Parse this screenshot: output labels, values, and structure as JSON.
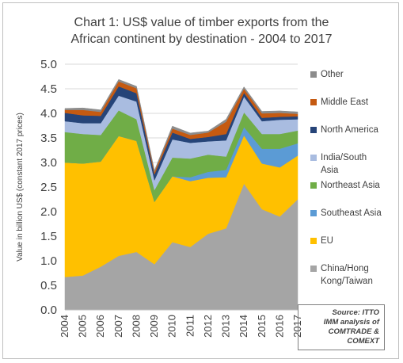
{
  "chart_data": {
    "type": "area",
    "stacked": true,
    "title": "Chart 1: US$ value of timber exports from the African continent by destination - 2004 to 2017",
    "title_lines": [
      "Chart 1: US$ value of timber exports from the",
      "African continent by destination - 2004 to 2017"
    ],
    "ylabel": "Value in billion US$ (constant 2017 prices)",
    "xlabel": "",
    "ylim": [
      0,
      5
    ],
    "yticks": [
      "0.0",
      "0.5",
      "1.0",
      "1.5",
      "2.0",
      "2.5",
      "3.0",
      "3.5",
      "4.0",
      "4.5",
      "5.0"
    ],
    "categories": [
      "2004",
      "2005",
      "2006",
      "2007",
      "2008",
      "2009",
      "2010",
      "2011",
      "2012",
      "2013",
      "2014",
      "2015",
      "2016",
      "2017"
    ],
    "grid": true,
    "legend_position": "right",
    "series": [
      {
        "name": "China/Hong Kong/Taiwan",
        "color": "#a5a5a5",
        "values": [
          0.67,
          0.7,
          0.88,
          1.1,
          1.18,
          0.93,
          1.38,
          1.28,
          1.55,
          1.66,
          2.57,
          2.05,
          1.9,
          2.25
        ]
      },
      {
        "name": "EU",
        "color": "#ffc000",
        "values": [
          2.33,
          2.28,
          2.14,
          2.44,
          2.26,
          1.27,
          1.34,
          1.34,
          1.14,
          1.04,
          0.98,
          0.93,
          1.0,
          0.89
        ]
      },
      {
        "name": "Southeast Asia",
        "color": "#5b9bd5",
        "values": [
          0.0,
          0.0,
          0.0,
          0.0,
          0.0,
          0.0,
          0.0,
          0.08,
          0.12,
          0.15,
          0.17,
          0.3,
          0.38,
          0.25
        ]
      },
      {
        "name": "Northeast Asia",
        "color": "#70ad47",
        "values": [
          0.62,
          0.6,
          0.54,
          0.52,
          0.44,
          0.24,
          0.38,
          0.38,
          0.35,
          0.27,
          0.3,
          0.3,
          0.3,
          0.26
        ]
      },
      {
        "name": "India/South Asia",
        "color": "#a9bce0",
        "values": [
          0.22,
          0.22,
          0.24,
          0.3,
          0.36,
          0.2,
          0.37,
          0.32,
          0.27,
          0.33,
          0.32,
          0.26,
          0.29,
          0.23
        ]
      },
      {
        "name": "North America",
        "color": "#264478",
        "values": [
          0.17,
          0.16,
          0.15,
          0.19,
          0.17,
          0.12,
          0.14,
          0.08,
          0.09,
          0.13,
          0.08,
          0.07,
          0.06,
          0.06
        ]
      },
      {
        "name": "Middle East",
        "color": "#c55a11",
        "values": [
          0.06,
          0.11,
          0.08,
          0.1,
          0.1,
          0.05,
          0.08,
          0.08,
          0.09,
          0.25,
          0.08,
          0.09,
          0.08,
          0.05
        ]
      },
      {
        "name": "Other",
        "color": "#8c8c8c",
        "values": [
          0.03,
          0.04,
          0.04,
          0.04,
          0.04,
          0.03,
          0.05,
          0.04,
          0.03,
          0.05,
          0.04,
          0.04,
          0.04,
          0.04
        ]
      }
    ],
    "legend_order": [
      "Other",
      "Middle East",
      "North America",
      "India/South Asia",
      "Northeast Asia",
      "Southeast Asia",
      "EU",
      "China/Hong Kong/Taiwan"
    ],
    "legend_lines": {
      "Other": [
        "Other"
      ],
      "Middle East": [
        "Middle East"
      ],
      "North America": [
        "North America"
      ],
      "India/South Asia": [
        "India/South",
        "Asia"
      ],
      "Northeast Asia": [
        "Northeast Asia"
      ],
      "Southeast Asia": [
        "Southeast Asia"
      ],
      "EU": [
        "EU"
      ],
      "China/Hong Kong/Taiwan": [
        "China/Hong",
        "Kong/Taiwan"
      ]
    },
    "source_note": [
      "Source: ITTO",
      "IMM analysis of",
      "COMTRADE &",
      "COMEXT"
    ]
  }
}
